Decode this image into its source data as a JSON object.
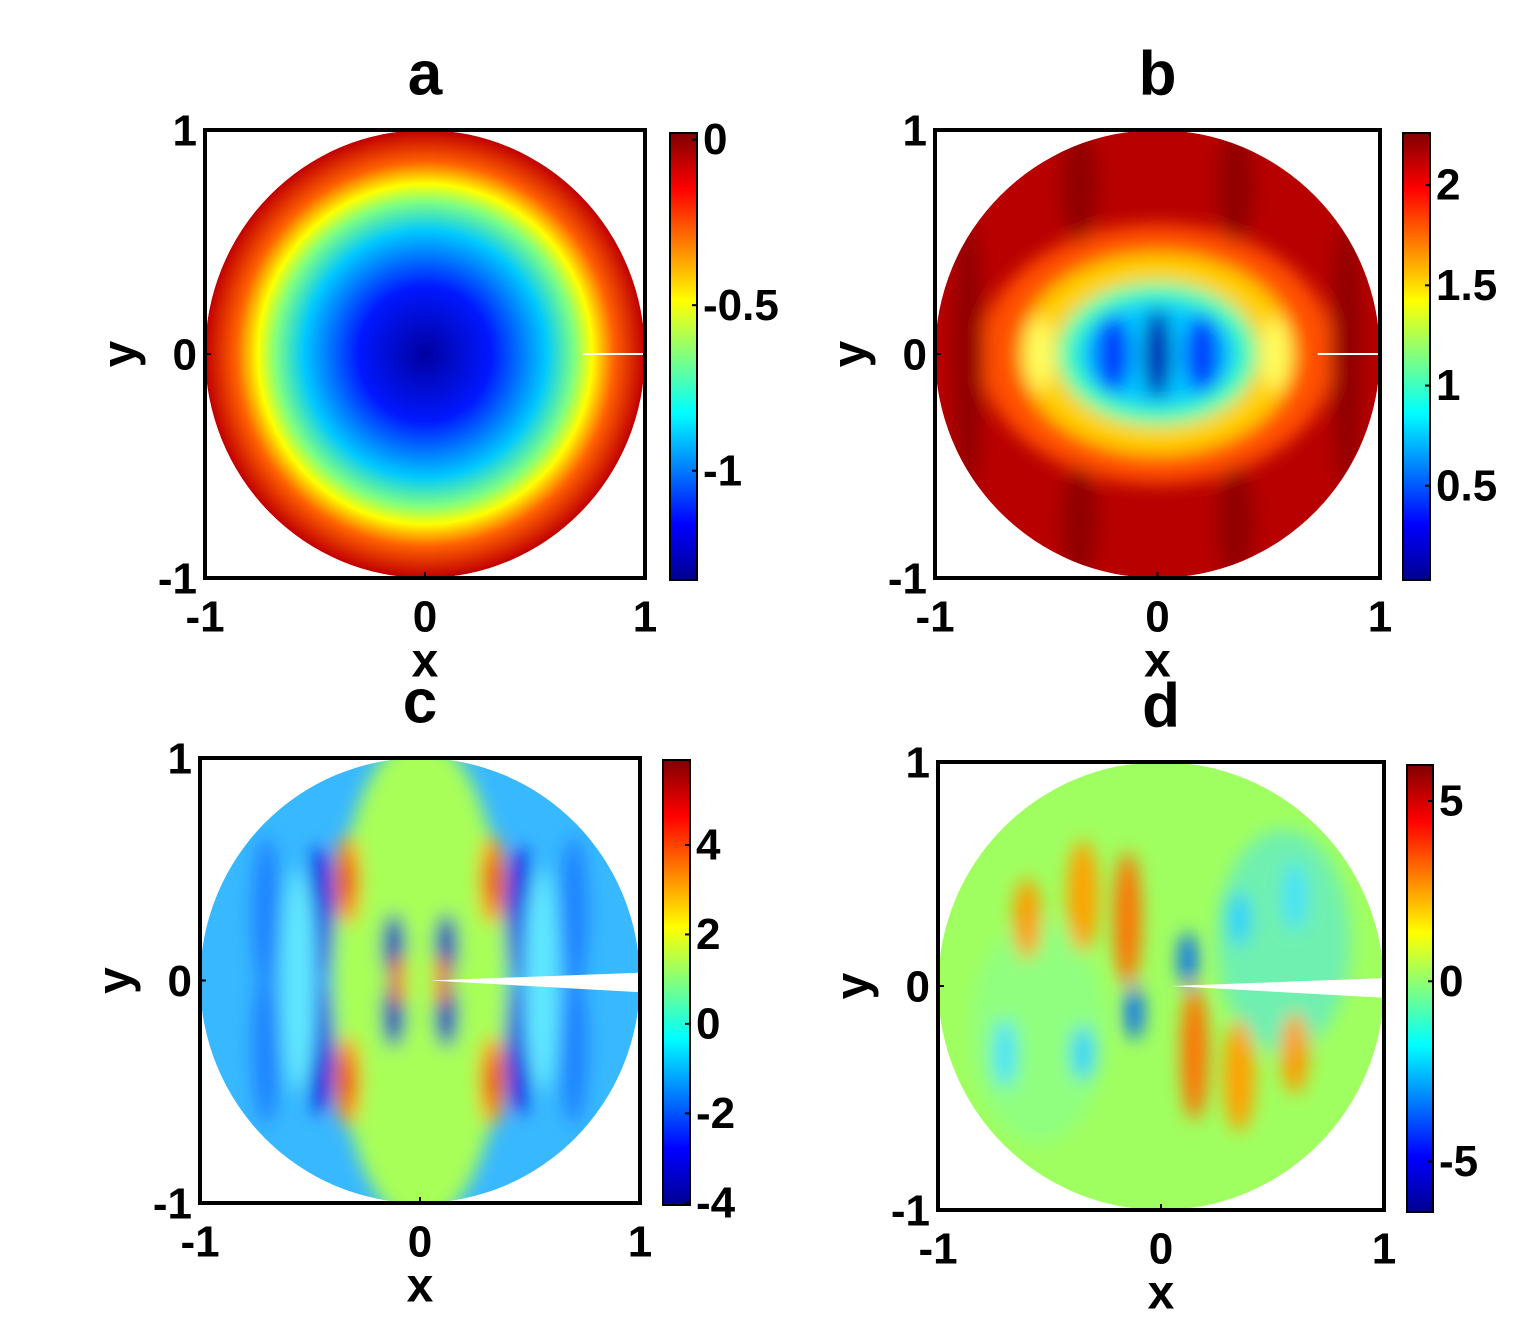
{
  "chart_data": [
    {
      "type": "heatmap",
      "title": "a",
      "xlabel": "x",
      "ylabel": "y",
      "xlim": [
        -1,
        1
      ],
      "ylim": [
        -1,
        1
      ],
      "xticks": [
        -1,
        0,
        1
      ],
      "yticks": [
        -1,
        0,
        1
      ],
      "colormap": "jet",
      "colorbar": {
        "clim": [
          -1.33,
          0.02
        ],
        "ticks": [
          0,
          -0.5,
          -1
        ]
      }
    },
    {
      "type": "heatmap",
      "title": "b",
      "xlabel": "x",
      "ylabel": "y",
      "xlim": [
        -1,
        1
      ],
      "ylim": [
        -1,
        1
      ],
      "xticks": [
        -1,
        0,
        1
      ],
      "yticks": [
        -1,
        0,
        1
      ],
      "colormap": "jet",
      "colorbar": {
        "clim": [
          0.03,
          2.26
        ],
        "ticks": [
          2,
          1.5,
          1,
          0.5
        ]
      }
    },
    {
      "type": "heatmap",
      "title": "c",
      "xlabel": "x",
      "ylabel": "y",
      "xlim": [
        -1,
        1
      ],
      "ylim": [
        -1,
        1
      ],
      "xticks": [
        -1,
        0,
        1
      ],
      "yticks": [
        -1,
        0,
        1
      ],
      "colormap": "jet",
      "colorbar": {
        "clim": [
          -4.05,
          5.9
        ],
        "ticks": [
          4,
          2,
          0,
          -2,
          -4
        ]
      }
    },
    {
      "type": "heatmap",
      "title": "d",
      "xlabel": "x",
      "ylabel": "y",
      "xlim": [
        -1,
        1
      ],
      "ylim": [
        -1,
        1
      ],
      "xticks": [
        -1,
        0,
        1
      ],
      "yticks": [
        -1,
        0,
        1
      ],
      "colormap": "jet",
      "colorbar": {
        "clim": [
          -6.4,
          6.0
        ],
        "ticks": [
          5,
          0,
          -5
        ]
      }
    }
  ]
}
